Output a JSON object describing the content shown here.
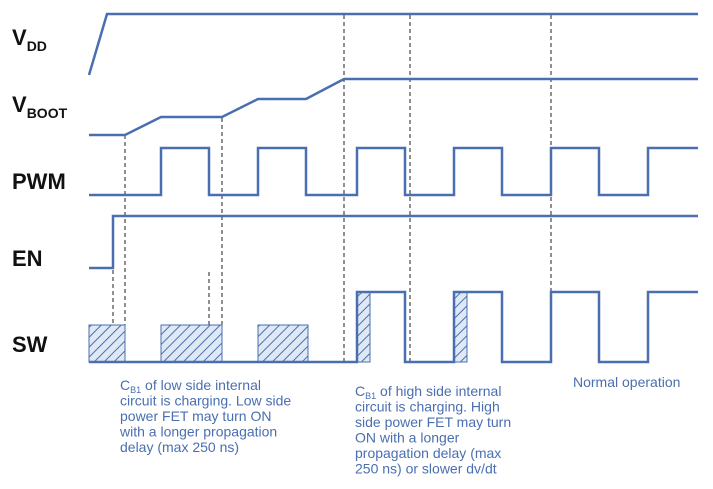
{
  "signals": {
    "vdd": {
      "main": "V",
      "sub": "DD"
    },
    "vboot": {
      "main": "V",
      "sub": "BOOT"
    },
    "pwm": {
      "main": "PWM"
    },
    "en": {
      "main": "EN"
    },
    "sw": {
      "main": "SW"
    }
  },
  "notes": {
    "low_side": {
      "lines": [
        {
          "pre": "C",
          "sub": "B1",
          "post": " of low side internal"
        },
        {
          "pre": "circuit is charging. Low side"
        },
        {
          "pre": "power FET may turn ON"
        },
        {
          "pre": "with a longer propagation"
        },
        {
          "pre": "delay (max 250 ns)"
        }
      ]
    },
    "high_side": {
      "lines": [
        {
          "pre": "C",
          "sub": "B1",
          "post": " of high side internal"
        },
        {
          "pre": "circuit is charging. High"
        },
        {
          "pre": "side power FET may turn"
        },
        {
          "pre": "ON with a longer"
        },
        {
          "pre": "propagation delay (max"
        },
        {
          "pre": "250 ns) or slower dv/dt"
        }
      ]
    },
    "normal": {
      "lines": [
        {
          "pre": "Normal operation"
        }
      ]
    }
  },
  "colors": {
    "wave": "#4a6fb0",
    "hatch_bg": "#dfe8f5",
    "text": "#111111",
    "marker": "#222222"
  }
}
